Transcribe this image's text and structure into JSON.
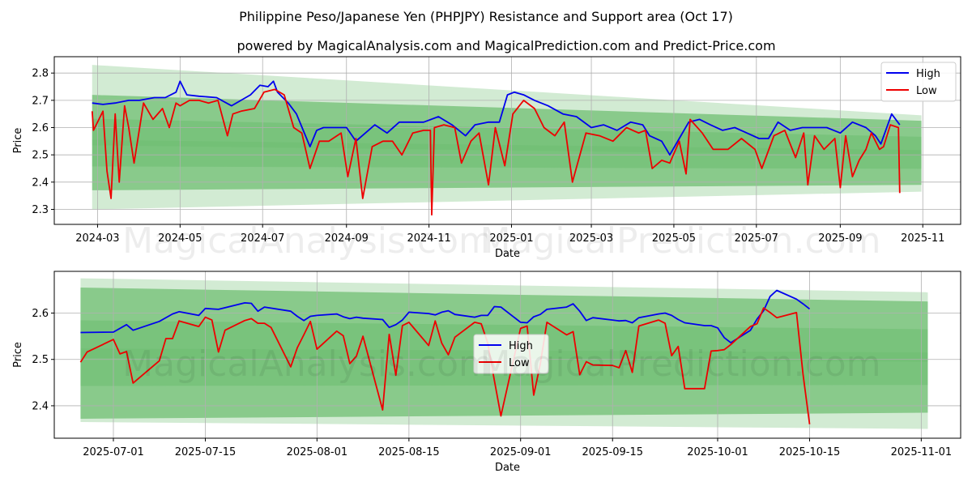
{
  "title": "Philippine Peso/Japanese Yen (PHPJPY) Resistance and Support area (Oct 17)",
  "subtitle": "powered by MagicalAnalysis.com and MagicalPrediction.com and Predict-Price.com",
  "watermarks": [
    "MagicalAnalysis.com",
    "MagicalPrediction.com"
  ],
  "colors": {
    "high": "#0000ee",
    "low": "#ee0000",
    "band": "#4caf50"
  },
  "chart_data": [
    {
      "type": "line",
      "panel": "full-history",
      "xlabel": "Date",
      "ylabel": "Price",
      "xlim": [
        "2024-01-29",
        "2025-11-29"
      ],
      "ylim": [
        2.245,
        2.86
      ],
      "xticks": [
        "2024-03",
        "2024-05",
        "2024-07",
        "2024-09",
        "2024-11",
        "2025-01",
        "2025-03",
        "2025-05",
        "2025-07",
        "2025-09",
        "2025-11"
      ],
      "xtick_dates": [
        "2024-03-01",
        "2024-05-01",
        "2024-07-01",
        "2024-09-01",
        "2024-11-01",
        "2025-01-01",
        "2025-03-01",
        "2025-05-01",
        "2025-07-01",
        "2025-09-01",
        "2025-11-01"
      ],
      "yticks": [
        "2.3",
        "2.4",
        "2.5",
        "2.6",
        "2.7",
        "2.8"
      ],
      "ytick_values": [
        2.3,
        2.4,
        2.5,
        2.6,
        2.7,
        2.8
      ],
      "grid": true,
      "legend": {
        "position": "top-right",
        "entries": [
          "High",
          "Low"
        ]
      },
      "band": {
        "x": [
          "2024-02-26",
          "2025-10-31"
        ],
        "resistance_top": [
          2.83,
          2.645
        ],
        "resistance_inner": [
          2.72,
          2.625
        ],
        "support_inner": [
          2.37,
          2.39
        ],
        "support_bottom": [
          2.3,
          2.365
        ]
      },
      "series": [
        {
          "name": "High",
          "x": [
            "2024-02-26",
            "2024-03-05",
            "2024-03-14",
            "2024-03-24",
            "2024-04-01",
            "2024-04-12",
            "2024-04-20",
            "2024-04-28",
            "2024-05-01",
            "2024-05-06",
            "2024-05-15",
            "2024-05-28",
            "2024-06-08",
            "2024-06-15",
            "2024-06-22",
            "2024-06-29",
            "2024-07-05",
            "2024-07-09",
            "2024-07-12",
            "2024-07-20",
            "2024-07-26",
            "2024-08-05",
            "2024-08-10",
            "2024-08-15",
            "2024-08-22",
            "2024-09-01",
            "2024-09-08",
            "2024-09-15",
            "2024-09-22",
            "2024-10-01",
            "2024-10-10",
            "2024-10-20",
            "2024-10-28",
            "2024-11-08",
            "2024-11-18",
            "2024-11-28",
            "2024-12-05",
            "2024-12-15",
            "2024-12-23",
            "2024-12-29",
            "2025-01-03",
            "2025-01-10",
            "2025-01-18",
            "2025-01-28",
            "2025-02-08",
            "2025-02-18",
            "2025-03-01",
            "2025-03-10",
            "2025-03-20",
            "2025-03-30",
            "2025-04-08",
            "2025-04-13",
            "2025-04-22",
            "2025-04-28",
            "2025-05-05",
            "2025-05-12",
            "2025-05-20",
            "2025-05-28",
            "2025-06-06",
            "2025-06-15",
            "2025-06-24",
            "2025-07-03",
            "2025-07-10",
            "2025-07-17",
            "2025-07-26",
            "2025-08-04",
            "2025-08-13",
            "2025-08-22",
            "2025-09-01",
            "2025-09-10",
            "2025-09-20",
            "2025-09-27",
            "2025-10-01",
            "2025-10-09",
            "2025-10-15"
          ],
          "values": [
            2.69,
            2.685,
            2.69,
            2.7,
            2.7,
            2.71,
            2.71,
            2.73,
            2.77,
            2.72,
            2.715,
            2.71,
            2.68,
            2.7,
            2.72,
            2.755,
            2.75,
            2.77,
            2.73,
            2.69,
            2.65,
            2.53,
            2.59,
            2.6,
            2.6,
            2.6,
            2.55,
            2.58,
            2.61,
            2.58,
            2.62,
            2.62,
            2.62,
            2.64,
            2.61,
            2.57,
            2.61,
            2.62,
            2.62,
            2.72,
            2.73,
            2.72,
            2.7,
            2.68,
            2.65,
            2.64,
            2.6,
            2.61,
            2.59,
            2.62,
            2.61,
            2.57,
            2.55,
            2.5,
            2.56,
            2.62,
            2.63,
            2.61,
            2.59,
            2.6,
            2.58,
            2.56,
            2.56,
            2.62,
            2.59,
            2.6,
            2.6,
            2.6,
            2.58,
            2.62,
            2.6,
            2.57,
            2.54,
            2.65,
            2.61
          ]
        },
        {
          "name": "Low",
          "x": [
            "2024-02-26",
            "2024-02-27",
            "2024-03-05",
            "2024-03-08",
            "2024-03-11",
            "2024-03-14",
            "2024-03-17",
            "2024-03-21",
            "2024-03-24",
            "2024-03-28",
            "2024-04-04",
            "2024-04-11",
            "2024-04-18",
            "2024-04-23",
            "2024-04-28",
            "2024-05-01",
            "2024-05-08",
            "2024-05-15",
            "2024-05-22",
            "2024-05-29",
            "2024-06-05",
            "2024-06-09",
            "2024-06-15",
            "2024-06-25",
            "2024-07-02",
            "2024-07-10",
            "2024-07-17",
            "2024-07-24",
            "2024-07-30",
            "2024-08-05",
            "2024-08-12",
            "2024-08-19",
            "2024-08-28",
            "2024-09-02",
            "2024-09-08",
            "2024-09-13",
            "2024-09-20",
            "2024-09-28",
            "2024-10-05",
            "2024-10-12",
            "2024-10-20",
            "2024-10-28",
            "2024-11-02",
            "2024-11-03",
            "2024-11-05",
            "2024-11-12",
            "2024-11-20",
            "2024-11-25",
            "2024-12-02",
            "2024-12-08",
            "2024-12-15",
            "2024-12-20",
            "2024-12-27",
            "2025-01-02",
            "2025-01-10",
            "2025-01-18",
            "2025-01-25",
            "2025-02-02",
            "2025-02-09",
            "2025-02-15",
            "2025-02-25",
            "2025-03-07",
            "2025-03-17",
            "2025-03-27",
            "2025-04-05",
            "2025-04-10",
            "2025-04-15",
            "2025-04-22",
            "2025-04-28",
            "2025-05-05",
            "2025-05-10",
            "2025-05-13",
            "2025-05-22",
            "2025-05-30",
            "2025-06-10",
            "2025-06-20",
            "2025-06-30",
            "2025-07-05",
            "2025-07-14",
            "2025-07-22",
            "2025-07-30",
            "2025-08-05",
            "2025-08-08",
            "2025-08-13",
            "2025-08-20",
            "2025-08-28",
            "2025-09-01",
            "2025-09-05",
            "2025-09-10",
            "2025-09-15",
            "2025-09-20",
            "2025-09-24",
            "2025-09-30",
            "2025-10-03",
            "2025-10-08",
            "2025-10-14",
            "2025-10-15"
          ],
          "values": [
            2.66,
            2.59,
            2.66,
            2.44,
            2.34,
            2.65,
            2.4,
            2.68,
            2.6,
            2.47,
            2.69,
            2.63,
            2.67,
            2.6,
            2.69,
            2.68,
            2.7,
            2.7,
            2.69,
            2.7,
            2.57,
            2.65,
            2.66,
            2.67,
            2.73,
            2.74,
            2.72,
            2.6,
            2.58,
            2.45,
            2.55,
            2.55,
            2.58,
            2.42,
            2.56,
            2.34,
            2.53,
            2.55,
            2.55,
            2.5,
            2.58,
            2.59,
            2.59,
            2.28,
            2.6,
            2.61,
            2.6,
            2.47,
            2.55,
            2.58,
            2.39,
            2.6,
            2.46,
            2.65,
            2.7,
            2.67,
            2.6,
            2.57,
            2.62,
            2.4,
            2.58,
            2.57,
            2.55,
            2.6,
            2.58,
            2.59,
            2.45,
            2.48,
            2.47,
            2.55,
            2.43,
            2.63,
            2.58,
            2.52,
            2.52,
            2.56,
            2.52,
            2.45,
            2.57,
            2.59,
            2.49,
            2.58,
            2.39,
            2.57,
            2.52,
            2.56,
            2.38,
            2.57,
            2.42,
            2.48,
            2.52,
            2.58,
            2.52,
            2.53,
            2.61,
            2.6,
            2.36
          ]
        }
      ]
    },
    {
      "type": "line",
      "panel": "recent-zoom",
      "xlabel": "Date",
      "ylabel": "Price",
      "xlim": [
        "2025-06-22",
        "2025-11-07"
      ],
      "ylim": [
        2.33,
        2.69
      ],
      "xticks": [
        "2025-07-01",
        "2025-07-15",
        "2025-08-01",
        "2025-08-15",
        "2025-09-01",
        "2025-09-15",
        "2025-10-01",
        "2025-10-15",
        "2025-11-01"
      ],
      "yticks": [
        "2.4",
        "2.5",
        "2.6"
      ],
      "ytick_values": [
        2.4,
        2.5,
        2.6
      ],
      "grid": true,
      "legend": {
        "position": "center",
        "entries": [
          "High",
          "Low"
        ]
      },
      "band": {
        "x": [
          "2025-06-26",
          "2025-11-02"
        ],
        "resistance_top": [
          2.675,
          2.645
        ],
        "resistance_inner": [
          2.655,
          2.625
        ],
        "support_inner": [
          2.372,
          2.385
        ],
        "support_bottom": [
          2.365,
          2.35
        ]
      },
      "series": [
        {
          "name": "High",
          "x": [
            "2025-06-26",
            "2025-07-01",
            "2025-07-03",
            "2025-07-04",
            "2025-07-08",
            "2025-07-10",
            "2025-07-11",
            "2025-07-14",
            "2025-07-15",
            "2025-07-16",
            "2025-07-17",
            "2025-07-21",
            "2025-07-22",
            "2025-07-23",
            "2025-07-24",
            "2025-07-28",
            "2025-07-29",
            "2025-07-30",
            "2025-07-31",
            "2025-08-01",
            "2025-08-04",
            "2025-08-05",
            "2025-08-06",
            "2025-08-07",
            "2025-08-08",
            "2025-08-11",
            "2025-08-12",
            "2025-08-13",
            "2025-08-14",
            "2025-08-15",
            "2025-08-18",
            "2025-08-19",
            "2025-08-20",
            "2025-08-21",
            "2025-08-22",
            "2025-08-25",
            "2025-08-26",
            "2025-08-27",
            "2025-08-28",
            "2025-08-29",
            "2025-09-01",
            "2025-09-02",
            "2025-09-03",
            "2025-09-04",
            "2025-09-05",
            "2025-09-08",
            "2025-09-09",
            "2025-09-10",
            "2025-09-11",
            "2025-09-12",
            "2025-09-15",
            "2025-09-16",
            "2025-09-17",
            "2025-09-18",
            "2025-09-19",
            "2025-09-22",
            "2025-09-23",
            "2025-09-24",
            "2025-09-25",
            "2025-09-26",
            "2025-09-29",
            "2025-09-30",
            "2025-10-01",
            "2025-10-02",
            "2025-10-03",
            "2025-10-06",
            "2025-10-07",
            "2025-10-08",
            "2025-10-09",
            "2025-10-10",
            "2025-10-13",
            "2025-10-14",
            "2025-10-15"
          ],
          "values": [
            2.558,
            2.559,
            2.575,
            2.563,
            2.582,
            2.598,
            2.603,
            2.595,
            2.61,
            2.609,
            2.608,
            2.622,
            2.621,
            2.604,
            2.613,
            2.604,
            2.593,
            2.584,
            2.593,
            2.595,
            2.598,
            2.592,
            2.588,
            2.591,
            2.589,
            2.586,
            2.569,
            2.575,
            2.585,
            2.602,
            2.599,
            2.596,
            2.602,
            2.605,
            2.597,
            2.591,
            2.595,
            2.595,
            2.614,
            2.613,
            2.58,
            2.579,
            2.592,
            2.597,
            2.608,
            2.613,
            2.62,
            2.604,
            2.584,
            2.59,
            2.585,
            2.583,
            2.584,
            2.579,
            2.59,
            2.598,
            2.6,
            2.595,
            2.586,
            2.579,
            2.573,
            2.573,
            2.568,
            2.547,
            2.536,
            2.563,
            2.587,
            2.605,
            2.636,
            2.649,
            2.63,
            2.62,
            2.609
          ]
        },
        {
          "name": "Low",
          "x": [
            "2025-06-26",
            "2025-06-27",
            "2025-07-01",
            "2025-07-02",
            "2025-07-03",
            "2025-07-04",
            "2025-07-08",
            "2025-07-09",
            "2025-07-10",
            "2025-07-11",
            "2025-07-14",
            "2025-07-15",
            "2025-07-16",
            "2025-07-17",
            "2025-07-18",
            "2025-07-21",
            "2025-07-22",
            "2025-07-23",
            "2025-07-24",
            "2025-07-25",
            "2025-07-28",
            "2025-07-29",
            "2025-07-30",
            "2025-07-31",
            "2025-08-01",
            "2025-08-04",
            "2025-08-05",
            "2025-08-06",
            "2025-08-07",
            "2025-08-08",
            "2025-08-11",
            "2025-08-12",
            "2025-08-13",
            "2025-08-14",
            "2025-08-15",
            "2025-08-18",
            "2025-08-19",
            "2025-08-20",
            "2025-08-21",
            "2025-08-22",
            "2025-08-25",
            "2025-08-26",
            "2025-08-27",
            "2025-08-28",
            "2025-08-29",
            "2025-09-01",
            "2025-09-02",
            "2025-09-03",
            "2025-09-04",
            "2025-09-05",
            "2025-09-08",
            "2025-09-09",
            "2025-09-10",
            "2025-09-11",
            "2025-09-12",
            "2025-09-15",
            "2025-09-16",
            "2025-09-17",
            "2025-09-18",
            "2025-09-19",
            "2025-09-22",
            "2025-09-23",
            "2025-09-24",
            "2025-09-25",
            "2025-09-26",
            "2025-09-29",
            "2025-09-30",
            "2025-10-01",
            "2025-10-02",
            "2025-10-03",
            "2025-10-06",
            "2025-10-07",
            "2025-10-08",
            "2025-10-09",
            "2025-10-10",
            "2025-10-13",
            "2025-10-14",
            "2025-10-15"
          ],
          "values": [
            2.494,
            2.516,
            2.543,
            2.512,
            2.517,
            2.449,
            2.497,
            2.545,
            2.545,
            2.583,
            2.571,
            2.591,
            2.585,
            2.516,
            2.563,
            2.584,
            2.588,
            2.578,
            2.578,
            2.569,
            2.484,
            2.525,
            2.553,
            2.582,
            2.522,
            2.561,
            2.551,
            2.491,
            2.507,
            2.55,
            2.391,
            2.554,
            2.466,
            2.573,
            2.58,
            2.53,
            2.583,
            2.535,
            2.51,
            2.548,
            2.58,
            2.577,
            2.535,
            2.455,
            2.378,
            2.567,
            2.572,
            2.423,
            2.49,
            2.58,
            2.553,
            2.56,
            2.467,
            2.495,
            2.488,
            2.487,
            2.482,
            2.519,
            2.472,
            2.572,
            2.585,
            2.578,
            2.508,
            2.528,
            2.437,
            2.437,
            2.518,
            2.519,
            2.521,
            2.532,
            2.571,
            2.577,
            2.611,
            2.601,
            2.59,
            2.601,
            2.468,
            2.36
          ]
        }
      ]
    }
  ]
}
